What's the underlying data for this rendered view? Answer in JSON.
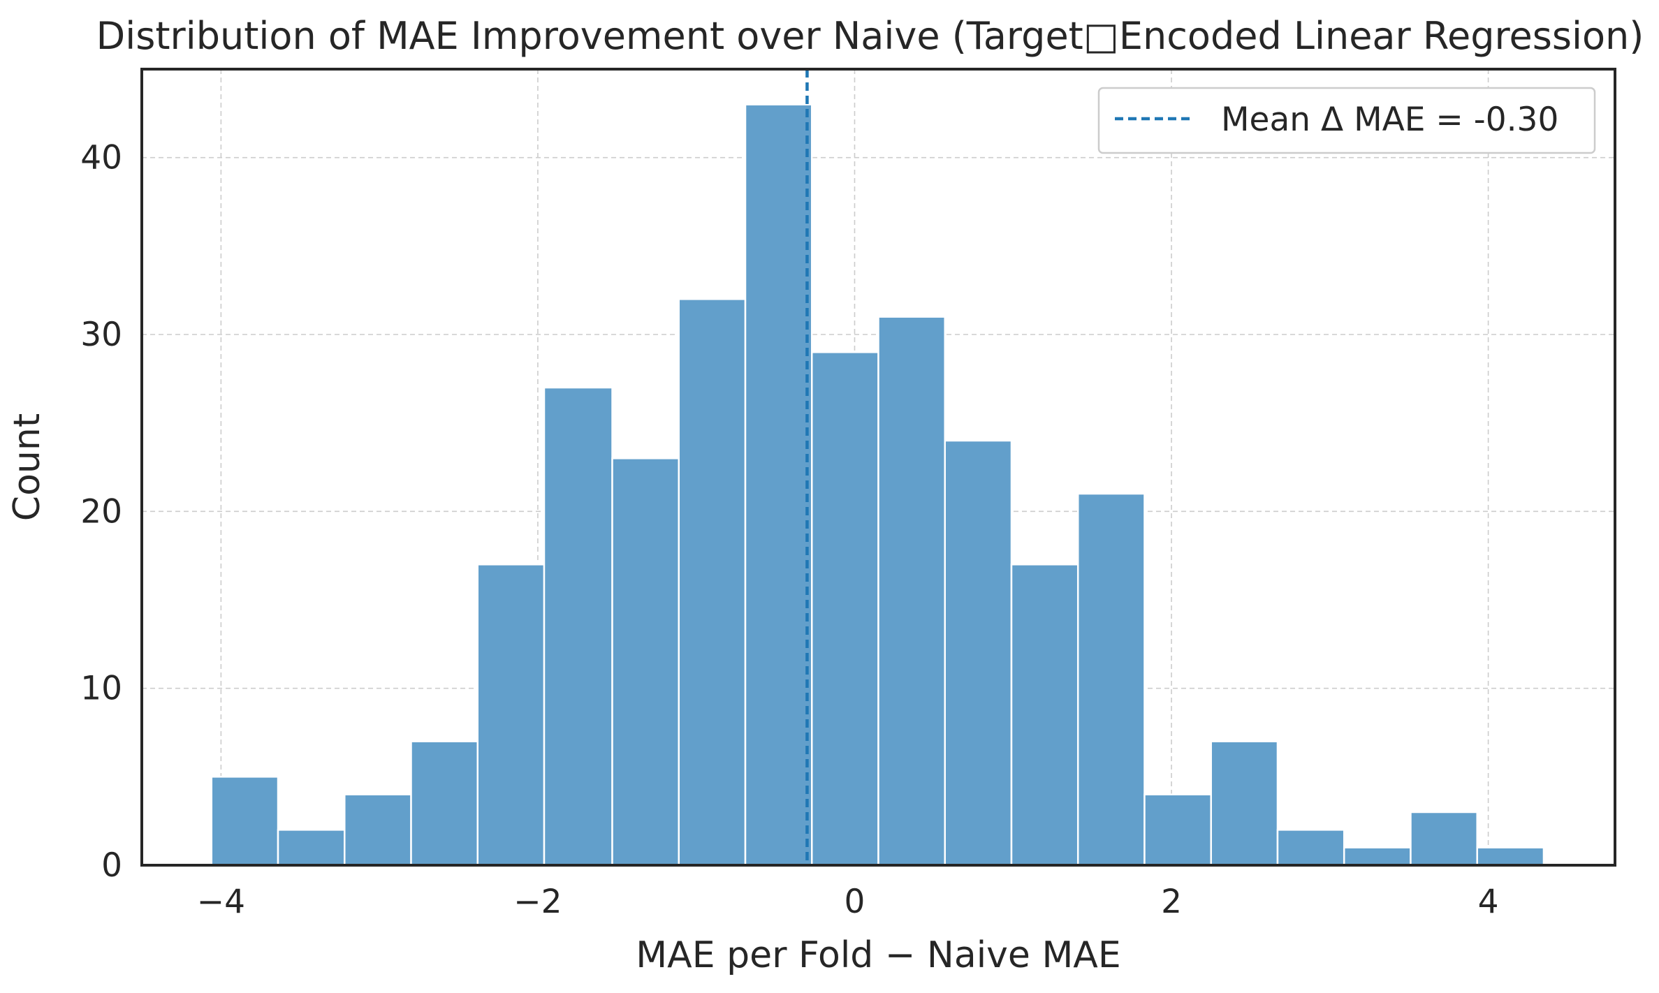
{
  "chart_data": {
    "type": "bar",
    "title": "Distribution of MAE Improvement over Naive (Target□Encoded Linear Regression)",
    "xlabel": "MAE per Fold − Naive MAE",
    "ylabel": "Count",
    "xlim": [
      -4.5,
      4.8
    ],
    "ylim": [
      0,
      45
    ],
    "xticks": [
      -4,
      -2,
      0,
      2,
      4
    ],
    "xtick_labels": [
      "−4",
      "−2",
      "0",
      "2",
      "4"
    ],
    "yticks": [
      0,
      10,
      20,
      30,
      40
    ],
    "ytick_labels": [
      "0",
      "10",
      "20",
      "30",
      "40"
    ],
    "grid": true,
    "bins": [
      {
        "x0": -4.06,
        "x1": -3.64,
        "count": 5
      },
      {
        "x0": -3.64,
        "x1": -3.22,
        "count": 2
      },
      {
        "x0": -3.22,
        "x1": -2.8,
        "count": 4
      },
      {
        "x0": -2.8,
        "x1": -2.38,
        "count": 7
      },
      {
        "x0": -2.38,
        "x1": -1.96,
        "count": 17
      },
      {
        "x0": -1.96,
        "x1": -1.53,
        "count": 27
      },
      {
        "x0": -1.53,
        "x1": -1.11,
        "count": 23
      },
      {
        "x0": -1.11,
        "x1": -0.69,
        "count": 32
      },
      {
        "x0": -0.69,
        "x1": -0.27,
        "count": 43
      },
      {
        "x0": -0.27,
        "x1": 0.15,
        "count": 29
      },
      {
        "x0": 0.15,
        "x1": 0.57,
        "count": 31
      },
      {
        "x0": 0.57,
        "x1": 0.99,
        "count": 24
      },
      {
        "x0": 0.99,
        "x1": 1.41,
        "count": 17
      },
      {
        "x0": 1.41,
        "x1": 1.83,
        "count": 21
      },
      {
        "x0": 1.83,
        "x1": 2.25,
        "count": 4
      },
      {
        "x0": 2.25,
        "x1": 2.67,
        "count": 7
      },
      {
        "x0": 2.67,
        "x1": 3.09,
        "count": 2
      },
      {
        "x0": 3.09,
        "x1": 3.51,
        "count": 1
      },
      {
        "x0": 3.51,
        "x1": 3.93,
        "count": 3
      },
      {
        "x0": 3.93,
        "x1": 4.35,
        "count": 1
      }
    ],
    "mean_line": {
      "x": -0.3,
      "label": "Mean Δ MAE = -0.30",
      "color": "#1f77b4",
      "style": "dashed"
    },
    "bar_color": "#629fcb",
    "legend_position": "upper right"
  }
}
